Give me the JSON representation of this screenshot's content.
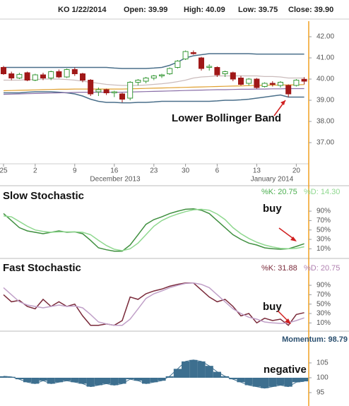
{
  "header": {
    "symbol_date": "KO 1/22/2014",
    "open": "Open: 39.99",
    "high": "High: 40.09",
    "low": "Low: 39.75",
    "close": "Close: 39.90"
  },
  "chart_data": [
    {
      "type": "candlestick",
      "categories": [
        "25",
        null,
        null,
        null,
        "2",
        null,
        null,
        null,
        null,
        "9",
        null,
        null,
        null,
        null,
        "16",
        null,
        null,
        null,
        null,
        "23",
        null,
        null,
        null,
        "30",
        null,
        null,
        null,
        "6",
        null,
        null,
        null,
        null,
        "13",
        null,
        null,
        null,
        null,
        "20",
        null
      ],
      "month_labels": [
        "December 2013",
        "January 2014"
      ],
      "open": [
        40.55,
        40.25,
        40.05,
        40.3,
        39.95,
        40.2,
        40.05,
        40.35,
        40.1,
        40.45,
        40.25,
        39.95,
        39.4,
        39.5,
        39.35,
        39.3,
        39.1,
        39.85,
        39.9,
        40.05,
        40.15,
        40.25,
        40.55,
        40.95,
        41.25,
        41.0,
        40.55,
        40.55,
        40.25,
        40.3,
        40.05,
        39.8,
        40.0,
        39.65,
        39.8,
        39.7,
        39.7,
        39.7,
        39.99
      ],
      "high": [
        40.62,
        40.35,
        40.3,
        40.35,
        40.25,
        40.3,
        40.4,
        40.45,
        40.5,
        40.55,
        40.3,
        40.0,
        39.6,
        39.55,
        39.45,
        39.35,
        39.9,
        40.0,
        40.1,
        40.2,
        40.25,
        40.55,
        40.9,
        41.35,
        41.35,
        41.05,
        40.7,
        40.6,
        40.4,
        40.35,
        40.15,
        40.05,
        40.05,
        39.85,
        39.9,
        39.9,
        39.75,
        40.0,
        40.09
      ],
      "low": [
        40.2,
        39.95,
        40.0,
        39.9,
        39.9,
        39.95,
        39.95,
        40.05,
        40.05,
        40.15,
        39.85,
        39.2,
        39.2,
        39.25,
        39.15,
        38.9,
        39.0,
        39.7,
        39.8,
        39.95,
        40.05,
        40.2,
        40.5,
        40.9,
        41.15,
        40.4,
        40.4,
        40.1,
        40.1,
        39.9,
        39.7,
        39.7,
        39.55,
        39.6,
        39.65,
        39.6,
        39.15,
        39.65,
        39.75
      ],
      "close": [
        40.25,
        40.05,
        40.22,
        39.95,
        40.2,
        40.05,
        40.35,
        40.1,
        40.45,
        40.25,
        39.95,
        39.3,
        39.5,
        39.35,
        39.4,
        39.05,
        39.85,
        39.95,
        40.05,
        40.15,
        40.2,
        40.5,
        40.85,
        41.3,
        41.2,
        40.5,
        40.6,
        40.2,
        40.35,
        40.0,
        39.75,
        40.0,
        39.6,
        39.8,
        39.75,
        39.85,
        39.3,
        39.95,
        39.9
      ],
      "up_color": "#3a9a3a",
      "down_color": "#a01818",
      "series": [
        {
          "color": "#4a6f8a",
          "values": [
            40.55,
            40.55,
            40.55,
            40.55,
            40.55,
            40.55,
            40.55,
            40.55,
            40.55,
            40.55,
            40.55,
            40.55,
            40.55,
            40.55,
            40.52,
            40.5,
            40.5,
            40.5,
            40.5,
            40.52,
            40.55,
            40.65,
            40.8,
            41.0,
            41.1,
            41.15,
            41.2,
            41.2,
            41.2,
            41.2,
            41.2,
            41.2,
            41.18,
            41.18,
            41.18,
            41.18,
            41.18,
            41.18,
            41.18
          ]
        },
        {
          "color": "#4a6f8a",
          "values": [
            39.35,
            39.35,
            39.35,
            39.38,
            39.4,
            39.4,
            39.4,
            39.38,
            39.35,
            39.3,
            39.2,
            39.05,
            38.95,
            38.9,
            38.9,
            38.88,
            38.88,
            38.9,
            38.9,
            38.92,
            38.95,
            38.95,
            38.95,
            38.95,
            38.95,
            38.95,
            38.95,
            38.97,
            39.0,
            39.0,
            39.02,
            39.05,
            39.1,
            39.15,
            39.2,
            39.25,
            39.15,
            39.15,
            39.15
          ]
        },
        {
          "color": "#cbbcbc",
          "values": [
            39.95,
            39.95,
            39.95,
            39.97,
            39.98,
            40.0,
            40.0,
            40.0,
            39.98,
            39.95,
            39.9,
            39.85,
            39.8,
            39.75,
            39.72,
            39.7,
            39.7,
            39.7,
            39.72,
            39.75,
            39.78,
            39.82,
            39.88,
            39.95,
            40.05,
            40.1,
            40.12,
            40.15,
            40.15,
            40.15,
            40.15,
            40.15,
            40.15,
            40.12,
            40.12,
            40.1,
            40.05,
            40.05,
            40.05
          ]
        },
        {
          "color": "#e0a030",
          "values": [
            39.45,
            39.46,
            39.47,
            39.48,
            39.49,
            39.5,
            39.51,
            39.52,
            39.52,
            39.53,
            39.53,
            39.53,
            39.53,
            39.53,
            39.53,
            39.53,
            39.54,
            39.55,
            39.56,
            39.57,
            39.58,
            39.59,
            39.6,
            39.61,
            39.62,
            39.63,
            39.64,
            39.65,
            39.66,
            39.67,
            39.68,
            39.69,
            39.7,
            39.71,
            39.71,
            39.72,
            39.72,
            39.73,
            39.74
          ]
        },
        {
          "color": "#8a6fa8",
          "values": [
            39.28,
            39.29,
            39.3,
            39.31,
            39.32,
            39.33,
            39.34,
            39.35,
            39.36,
            39.37,
            39.38,
            39.38,
            39.38,
            39.38,
            39.38,
            39.38,
            39.39,
            39.4,
            39.41,
            39.42,
            39.43,
            39.44,
            39.45,
            39.46,
            39.47,
            39.48,
            39.49,
            39.5,
            39.5,
            39.51,
            39.52,
            39.52,
            39.53,
            39.53,
            39.54,
            39.54,
            39.55,
            39.55,
            39.55
          ]
        }
      ],
      "ylim": [
        36,
        42.6
      ],
      "yticks": [
        {
          "value": 42,
          "label": "42.00"
        },
        {
          "value": 41,
          "label": "41.00"
        },
        {
          "value": 40,
          "label": "40.00"
        },
        {
          "value": 39,
          "label": "39.00"
        },
        {
          "value": 38,
          "label": "38.00"
        },
        {
          "value": 37,
          "label": "37.00"
        }
      ],
      "annotations": [
        "Lower Bollinger Band"
      ]
    },
    {
      "type": "line",
      "title": "Slow Stochastic",
      "readouts": [
        {
          "text": "%K: 20.75",
          "color": "#4caf50"
        },
        {
          "text": "%D: 14.30",
          "color": "#8fd88f"
        }
      ],
      "series": [
        {
          "color": "#3f8f3f",
          "values": [
            85,
            70,
            55,
            48,
            45,
            42,
            45,
            48,
            45,
            46,
            42,
            28,
            12,
            8,
            5,
            5,
            18,
            40,
            62,
            72,
            78,
            85,
            90,
            94,
            95,
            92,
            85,
            70,
            55,
            40,
            30,
            22,
            18,
            12,
            10,
            9,
            10,
            15,
            20.75
          ]
        },
        {
          "color": "#8fd88f",
          "values": [
            80,
            78,
            68,
            58,
            50,
            47,
            45,
            46,
            46,
            46,
            45,
            40,
            28,
            17,
            9,
            6,
            10,
            22,
            40,
            58,
            70,
            78,
            84,
            89,
            93,
            94,
            92,
            84,
            72,
            55,
            42,
            32,
            24,
            18,
            14,
            11,
            10,
            11,
            14.3
          ]
        }
      ],
      "ylim": [
        0,
        100
      ],
      "yticks": [
        {
          "value": 90,
          "label": "90%"
        },
        {
          "value": 70,
          "label": "70%"
        },
        {
          "value": 50,
          "label": "50%"
        },
        {
          "value": 30,
          "label": "30%"
        },
        {
          "value": 10,
          "label": "10%"
        }
      ],
      "annotations": [
        "buy"
      ]
    },
    {
      "type": "line",
      "title": "Fast Stochastic",
      "readouts": [
        {
          "text": "%K: 31.88",
          "color": "#7a2a3a"
        },
        {
          "text": "%D: 20.75",
          "color": "#b080b0"
        }
      ],
      "series": [
        {
          "color": "#7a2a3a",
          "values": [
            70,
            55,
            58,
            45,
            40,
            60,
            45,
            55,
            45,
            50,
            25,
            5,
            5,
            8,
            5,
            15,
            65,
            60,
            72,
            78,
            82,
            88,
            92,
            95,
            95,
            80,
            65,
            55,
            60,
            45,
            25,
            30,
            10,
            20,
            15,
            18,
            5,
            28,
            31.88
          ]
        },
        {
          "color": "#c0a0c8",
          "values": [
            85,
            70,
            55,
            48,
            45,
            42,
            45,
            48,
            45,
            46,
            42,
            28,
            12,
            8,
            5,
            5,
            18,
            40,
            62,
            72,
            78,
            85,
            90,
            94,
            95,
            92,
            85,
            70,
            55,
            40,
            30,
            22,
            18,
            12,
            10,
            9,
            10,
            15,
            20.75
          ]
        }
      ],
      "ylim": [
        0,
        100
      ],
      "yticks": [
        {
          "value": 90,
          "label": "90%"
        },
        {
          "value": 70,
          "label": "70%"
        },
        {
          "value": 50,
          "label": "50%"
        },
        {
          "value": 30,
          "label": "30%"
        },
        {
          "value": 10,
          "label": "10%"
        }
      ],
      "annotations": [
        "buy"
      ]
    },
    {
      "type": "area",
      "readouts": [
        {
          "text": "Momentum: 98.79",
          "color": "#2a4f6f"
        }
      ],
      "color": "#3d6f8f",
      "baseline": 100,
      "values": [
        100.5,
        100.3,
        99.5,
        98.5,
        98,
        99,
        98,
        98.5,
        99,
        98.5,
        98,
        97,
        97.5,
        98,
        97.5,
        98,
        99.5,
        99,
        98,
        98.5,
        99,
        100.5,
        103,
        105.5,
        106,
        105.5,
        104,
        102,
        100.5,
        99.5,
        98.5,
        97.5,
        97,
        96.5,
        97,
        97.5,
        97,
        98.5,
        98.79
      ],
      "ylim": [
        91.2,
        110.7
      ],
      "yticks": [
        105,
        100,
        95
      ],
      "annotations": [
        "negative"
      ]
    }
  ]
}
